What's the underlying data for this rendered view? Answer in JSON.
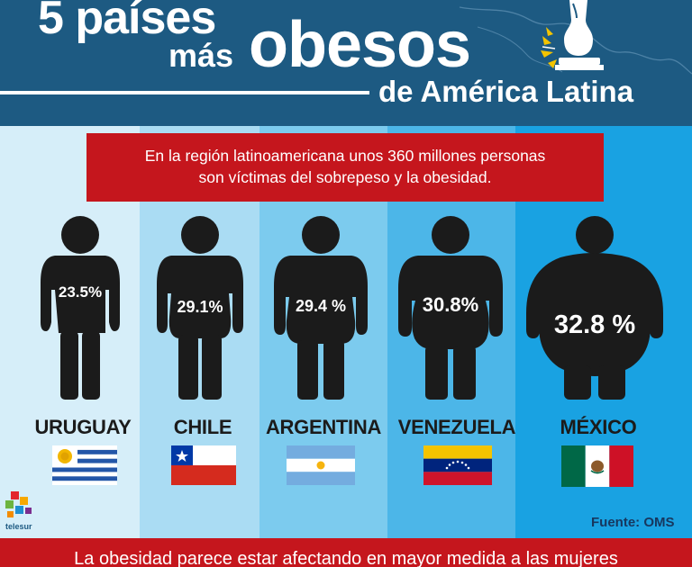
{
  "header": {
    "title_number": "5 países",
    "title_mas": "más",
    "title_big": "obesos",
    "title_sub": "de América Latina"
  },
  "banner": {
    "line1": "En la región latinoamericana unos 360 millones personas",
    "line2": "son víctimas del sobrepeso y la obesidad."
  },
  "countries": [
    {
      "name": "URUGUAY",
      "percent": "23.5%"
    },
    {
      "name": "CHILE",
      "percent": "29.1%"
    },
    {
      "name": "ARGENTINA",
      "percent": "29.4 %"
    },
    {
      "name": "VENEZUELA",
      "percent": "30.8%"
    },
    {
      "name": "MÉXICO",
      "percent": "32.8 %"
    }
  ],
  "logo": {
    "text": "telesur"
  },
  "source": "Fuente: OMS",
  "footer": {
    "text": "La obesidad parece estar afectando en mayor medida a las mujeres"
  },
  "colors": {
    "header_bg": "#1d5a82",
    "banner_red": "#c5161d",
    "figure": "#1b1b1b"
  }
}
